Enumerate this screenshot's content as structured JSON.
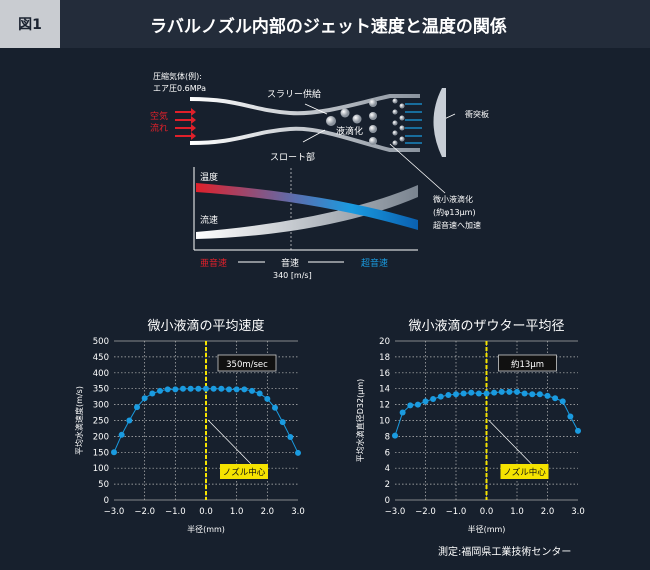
{
  "header": {
    "figure_label": "図1",
    "title": "ラバルノズル内部のジェット速度と温度の関係"
  },
  "diagram": {
    "gas_label_1": "圧縮気体(例):",
    "gas_label_2": "エア圧0.6MPa",
    "air_flow_1": "空気",
    "air_flow_2": "流れ",
    "slurry": "スラリー供給",
    "liquefy": "液滴化",
    "throat": "スロート部",
    "impact_plate": "衝突板",
    "fine_1": "微小液滴化",
    "fine_2": "(約φ13μm)",
    "fine_3": "超音速へ加速",
    "temperature": "温度",
    "flow_speed": "流速",
    "subsonic": "亜音速",
    "sonic": "音速",
    "sonic_value": "340 [m/s]",
    "supersonic": "超音速",
    "colors": {
      "subsonic": "#e0202a",
      "supersonic": "#1a9be0"
    }
  },
  "chart_data": [
    {
      "type": "line",
      "title": "微小液滴の平均速度",
      "xlabel": "半径(mm)",
      "ylabel": "平均水滴速度(m/s)",
      "xlim": [
        -3,
        3
      ],
      "ylim": [
        0,
        500
      ],
      "grid": true,
      "xticks": [
        "−3.0",
        "−2.0",
        "−1.0",
        "0.0",
        "1.0",
        "2.0",
        "3.0"
      ],
      "yticks": [
        "0",
        "50",
        "100",
        "150",
        "200",
        "250",
        "300",
        "350",
        "400",
        "450",
        "500"
      ],
      "annotation": "350m/sec",
      "center_label": "ノズル中心",
      "color": "#1a9be0",
      "x": [
        -3,
        -2.75,
        -2.5,
        -2.25,
        -2,
        -1.75,
        -1.5,
        -1.25,
        -1,
        -0.75,
        -0.5,
        -0.25,
        0,
        0.25,
        0.5,
        0.75,
        1,
        1.25,
        1.5,
        1.75,
        2,
        2.25,
        2.5,
        2.75,
        3
      ],
      "y": [
        150,
        205,
        250,
        292,
        320,
        335,
        343,
        348,
        348,
        350,
        350,
        350,
        350,
        350,
        350,
        348,
        348,
        348,
        343,
        335,
        318,
        290,
        245,
        198,
        148
      ]
    },
    {
      "type": "line",
      "title": "微小液滴のザウター平均径",
      "xlabel": "半径(mm)",
      "ylabel": "平均水滴直径D32(μm)",
      "xlim": [
        -3,
        3
      ],
      "ylim": [
        0,
        20
      ],
      "grid": true,
      "xticks": [
        "−3.0",
        "−2.0",
        "−1.0",
        "0.0",
        "1.0",
        "2.0",
        "3.0"
      ],
      "yticks": [
        "0",
        "2",
        "4",
        "6",
        "8",
        "10",
        "12",
        "14",
        "16",
        "18",
        "20"
      ],
      "annotation": "約13μm",
      "center_label": "ノズル中心",
      "color": "#1a9be0",
      "x": [
        -3,
        -2.75,
        -2.5,
        -2.25,
        -2,
        -1.75,
        -1.5,
        -1.25,
        -1,
        -0.75,
        -0.5,
        -0.25,
        0,
        0.25,
        0.5,
        0.75,
        1,
        1.25,
        1.5,
        1.75,
        2,
        2.25,
        2.5,
        2.75,
        3
      ],
      "y": [
        8.1,
        11.0,
        11.9,
        12.0,
        12.4,
        12.7,
        13.0,
        13.2,
        13.3,
        13.4,
        13.5,
        13.4,
        13.4,
        13.5,
        13.6,
        13.6,
        13.6,
        13.4,
        13.3,
        13.3,
        13.1,
        12.8,
        12.4,
        10.5,
        8.7
      ]
    }
  ],
  "source": "測定:福岡県工業技術センター"
}
